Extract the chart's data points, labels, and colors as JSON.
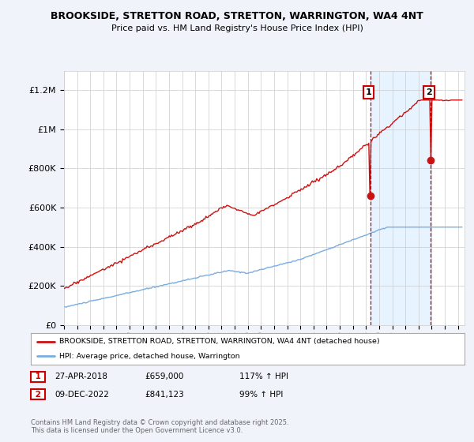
{
  "title": "BROOKSIDE, STRETTON ROAD, STRETTON, WARRINGTON, WA4 4NT",
  "subtitle": "Price paid vs. HM Land Registry's House Price Index (HPI)",
  "ylabel_ticks": [
    "£0",
    "£200K",
    "£400K",
    "£600K",
    "£800K",
    "£1M",
    "£1.2M"
  ],
  "ytick_values": [
    0,
    200000,
    400000,
    600000,
    800000,
    1000000,
    1200000
  ],
  "ylim": [
    0,
    1300000
  ],
  "xlim_start": 1995.0,
  "xlim_end": 2025.5,
  "hpi_color": "#7aade0",
  "price_color": "#cc1111",
  "vline_color": "#cc0000",
  "shade_color": "#ddeeff",
  "marker1_x": 2018.32,
  "marker1_y": 659000,
  "marker2_x": 2022.94,
  "marker2_y": 841123,
  "sale1_label": "1",
  "sale2_label": "2",
  "sale1_date": "27-APR-2018",
  "sale1_price": "£659,000",
  "sale1_hpi": "117% ↑ HPI",
  "sale2_date": "09-DEC-2022",
  "sale2_price": "£841,123",
  "sale2_hpi": "99% ↑ HPI",
  "legend_line1": "BROOKSIDE, STRETTON ROAD, STRETTON, WARRINGTON, WA4 4NT (detached house)",
  "legend_line2": "HPI: Average price, detached house, Warrington",
  "footnote": "Contains HM Land Registry data © Crown copyright and database right 2025.\nThis data is licensed under the Open Government Licence v3.0.",
  "background_color": "#f0f4fa",
  "plot_bg_color": "#ffffff",
  "grid_color": "#cccccc",
  "title_fontsize": 9,
  "subtitle_fontsize": 8
}
